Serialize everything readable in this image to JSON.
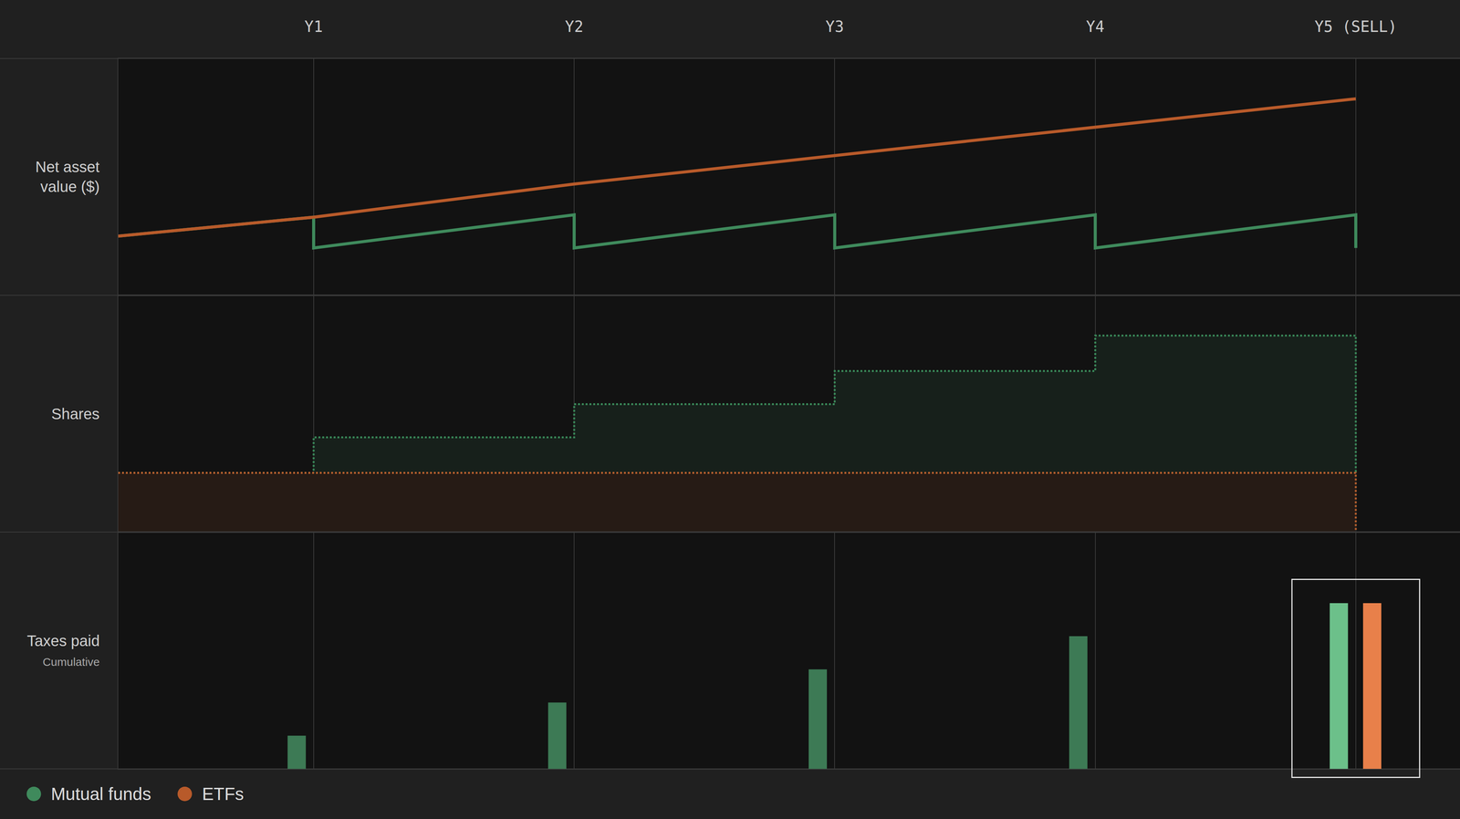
{
  "chart_data": [
    {
      "type": "line",
      "title": "Net asset value ($)",
      "legend": "bottom left",
      "grid": true,
      "tick_labels": "x",
      "xlim": [
        0.25,
        5.4
      ],
      "xticks": [
        {
          "value": 1,
          "label": "Y1"
        },
        {
          "value": 2,
          "label": "Y2"
        },
        {
          "value": 3,
          "label": "Y3"
        },
        {
          "value": 4,
          "label": "Y4"
        },
        {
          "value": 5,
          "label": "Y5 (SELL)"
        }
      ],
      "ylim": [
        0,
        100
      ],
      "series": [
        {
          "name": "Mutual funds",
          "color": "#3f8a5c",
          "x": [
            0.25,
            1,
            1,
            2,
            2,
            3,
            3,
            4,
            4,
            5,
            5
          ],
          "values": [
            25,
            33,
            20,
            34,
            20,
            34,
            20,
            34,
            20,
            34,
            20
          ]
        },
        {
          "name": "ETFs",
          "color": "#b85a2a",
          "x": [
            0.25,
            1,
            2,
            3,
            4,
            5
          ],
          "values": [
            25,
            33,
            47,
            59,
            71,
            83
          ]
        }
      ]
    },
    {
      "type": "step",
      "title": "Shares",
      "grid": true,
      "tick_labels": false,
      "line_style": "dotted",
      "xlim": [
        0.25,
        5.4
      ],
      "xticks": [
        {
          "value": 1,
          "label": "Y1"
        },
        {
          "value": 2,
          "label": "Y2"
        },
        {
          "value": 3,
          "label": "Y3"
        },
        {
          "value": 4,
          "label": "Y4"
        },
        {
          "value": 5,
          "label": "Y5 (SELL)"
        }
      ],
      "ylim": [
        0,
        100
      ],
      "series": [
        {
          "name": "Mutual funds",
          "color": "#3a8a5a",
          "x": [
            0.25,
            1,
            2,
            3,
            4,
            5,
            5
          ],
          "values": [
            25,
            40,
            54,
            68,
            83,
            83,
            25
          ]
        },
        {
          "name": "ETFs",
          "color": "#b8602e",
          "x": [
            0.25,
            5,
            5
          ],
          "values": [
            25,
            25,
            0
          ]
        }
      ]
    },
    {
      "type": "bar",
      "title": "Taxes paid",
      "subtitle": "Cumulative",
      "grid": true,
      "tick_labels": false,
      "xlim": [
        0.25,
        5.4
      ],
      "xticks": [
        {
          "value": 1,
          "label": "Y1"
        },
        {
          "value": 2,
          "label": "Y2"
        },
        {
          "value": 3,
          "label": "Y3"
        },
        {
          "value": 4,
          "label": "Y4"
        },
        {
          "value": 5,
          "label": "Y5 (SELL)"
        }
      ],
      "ylim": [
        0,
        100
      ],
      "series": [
        {
          "name": "Mutual funds",
          "color": "#3d7a55",
          "colors": [
            "#3d7a55",
            "#3d7a55",
            "#3d7a55",
            "#3d7a55",
            "#6cc08a"
          ],
          "x": [
            1,
            2,
            3,
            4,
            5
          ],
          "values": [
            14,
            28,
            42,
            56,
            70
          ]
        },
        {
          "name": "ETFs",
          "color": "#e8804a",
          "x": [
            5
          ],
          "values": [
            70
          ]
        }
      ]
    }
  ]
}
